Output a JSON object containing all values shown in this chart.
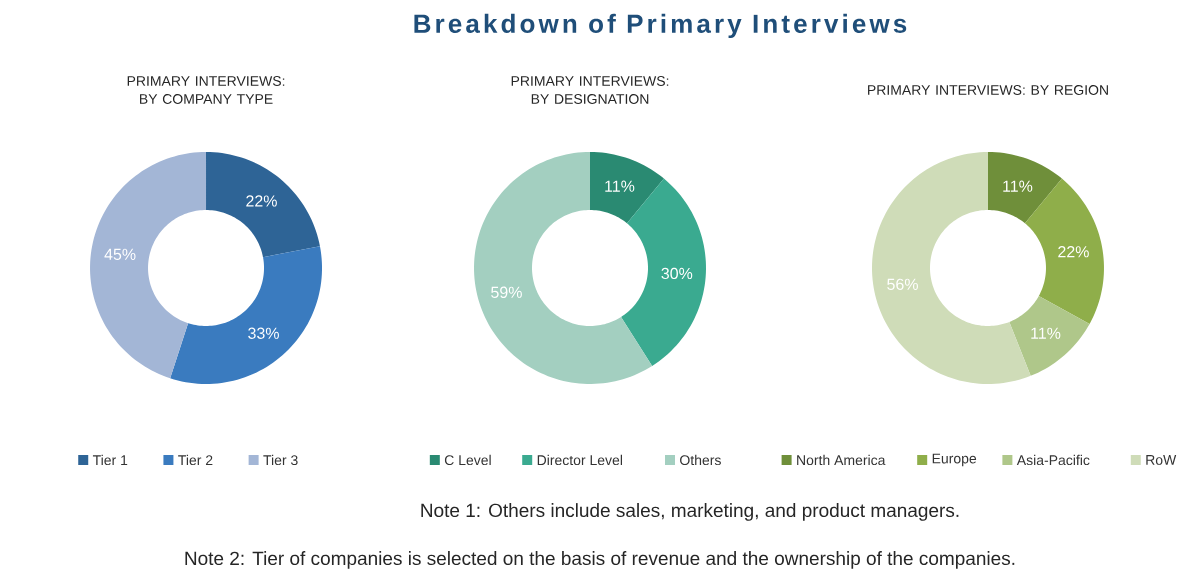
{
  "chart_data": [
    {
      "type": "other",
      "title": "Breakdown of Primary Interviews",
      "annotations": [
        "Note 1: Others include sales, marketing, and product managers.",
        "Note 2: Tier of companies is selected on the basis of revenue and the ownership of the companies."
      ]
    },
    {
      "type": "donut",
      "title": "PRIMARY INTERVIEWS: BY COMPANY TYPE",
      "categories": [
        "Tier 1",
        "Tier 2",
        "Tier 3"
      ],
      "values": [
        22,
        33,
        45
      ],
      "value_labels": [
        "22%",
        "33%",
        "45%"
      ],
      "colors": [
        "#2e6496",
        "#3a7bbf",
        "#a3b6d6"
      ],
      "legend": "bottom"
    },
    {
      "type": "donut",
      "title": "PRIMARY INTERVIEWS: BY DESIGNATION",
      "categories": [
        "C Level",
        "Director Level",
        "Others"
      ],
      "values": [
        11,
        30,
        59
      ],
      "value_labels": [
        "11%",
        "30%",
        "59%"
      ],
      "colors": [
        "#2a8a72",
        "#3aaa90",
        "#a3cfc0"
      ],
      "legend": "bottom"
    },
    {
      "type": "donut",
      "title": "PRIMARY INTERVIEWS: BY REGION",
      "categories": [
        "North America",
        "Europe",
        "Asia-Pacific",
        "RoW"
      ],
      "values": [
        11,
        22,
        11,
        56
      ],
      "value_labels": [
        "11%",
        "22%",
        "11%",
        "56%"
      ],
      "colors": [
        "#6f8f3a",
        "#8fae4a",
        "#afc78a",
        "#cfdcb8"
      ],
      "legend": "bottom"
    }
  ]
}
